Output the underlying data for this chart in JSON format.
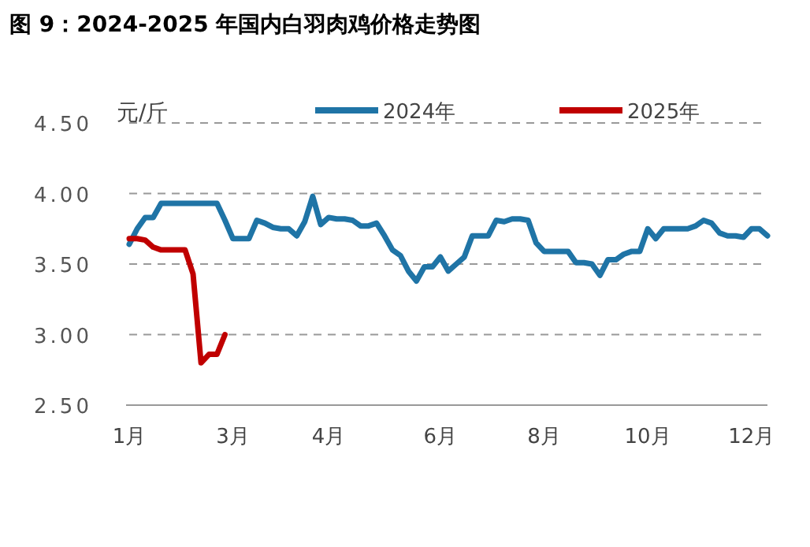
{
  "chart_data": {
    "type": "line",
    "title": "图 9：2024-2025 年国内白羽肉鸡价格走势图",
    "ylabel": "元/斤",
    "categories": [
      "1月",
      null,
      null,
      null,
      null,
      null,
      null,
      null,
      null,
      null,
      null,
      null,
      null,
      "3月",
      null,
      null,
      null,
      null,
      null,
      null,
      null,
      null,
      null,
      null,
      null,
      "4月",
      null,
      null,
      null,
      null,
      null,
      null,
      null,
      null,
      null,
      null,
      null,
      null,
      null,
      "6月",
      null,
      null,
      null,
      null,
      null,
      null,
      null,
      null,
      null,
      null,
      null,
      null,
      "8月",
      null,
      null,
      null,
      null,
      null,
      null,
      null,
      null,
      null,
      null,
      null,
      null,
      "10月",
      null,
      null,
      null,
      null,
      null,
      null,
      null,
      null,
      null,
      null,
      null,
      null,
      "12月",
      null,
      null
    ],
    "series": [
      {
        "name": "2024年",
        "color": "#1f74a6",
        "values": [
          3.64,
          3.75,
          3.83,
          3.83,
          3.93,
          3.93,
          3.93,
          3.93,
          3.93,
          3.93,
          3.93,
          3.93,
          3.81,
          3.68,
          3.68,
          3.68,
          3.81,
          3.79,
          3.76,
          3.75,
          3.75,
          3.7,
          3.8,
          3.98,
          3.78,
          3.83,
          3.82,
          3.82,
          3.81,
          3.77,
          3.77,
          3.79,
          3.7,
          3.6,
          3.56,
          3.45,
          3.38,
          3.48,
          3.48,
          3.55,
          3.45,
          3.5,
          3.55,
          3.7,
          3.7,
          3.7,
          3.81,
          3.8,
          3.82,
          3.82,
          3.81,
          3.65,
          3.59,
          3.59,
          3.59,
          3.59,
          3.51,
          3.51,
          3.5,
          3.42,
          3.53,
          3.53,
          3.57,
          3.59,
          3.59,
          3.75,
          3.68,
          3.75,
          3.75,
          3.75,
          3.75,
          3.77,
          3.81,
          3.79,
          3.72,
          3.7,
          3.7,
          3.69,
          3.75,
          3.75,
          3.7
        ]
      },
      {
        "name": "2025年",
        "color": "#c00000",
        "values": [
          3.68,
          3.68,
          3.67,
          3.62,
          3.6,
          3.6,
          3.6,
          3.6,
          3.43,
          2.8,
          2.86,
          2.86,
          3.0,
          null,
          null,
          null,
          null,
          null,
          null,
          null,
          null,
          null,
          null,
          null,
          null,
          null,
          null,
          null,
          null,
          null,
          null,
          null,
          null,
          null,
          null,
          null,
          null,
          null,
          null,
          null,
          null,
          null,
          null,
          null,
          null,
          null,
          null,
          null,
          null,
          null,
          null,
          null,
          null,
          null,
          null,
          null,
          null,
          null,
          null,
          null,
          null,
          null,
          null,
          null,
          null,
          null,
          null,
          null,
          null,
          null,
          null,
          null,
          null,
          null,
          null,
          null,
          null,
          null,
          null,
          null,
          null
        ]
      }
    ],
    "ylim": [
      2.5,
      4.5
    ],
    "yticks": [
      {
        "value": 2.5,
        "label": "2.50"
      },
      {
        "value": 3.0,
        "label": "3.00"
      },
      {
        "value": 3.5,
        "label": "3.50"
      },
      {
        "value": 4.0,
        "label": "4.00"
      },
      {
        "value": 4.5,
        "label": "4.50"
      }
    ],
    "grid": "y",
    "legend": "top",
    "line_style": "solid"
  }
}
